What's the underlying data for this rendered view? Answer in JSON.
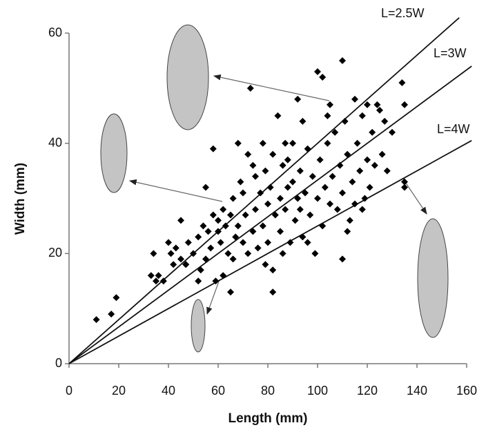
{
  "chart_data": {
    "type": "scatter",
    "x_label": "Length (mm)",
    "y_label": "Width (mm)",
    "xlim": [
      0,
      160
    ],
    "ylim": [
      0,
      60
    ],
    "xticks": [
      0,
      20,
      40,
      60,
      80,
      100,
      120,
      140,
      160
    ],
    "yticks": [
      0,
      20,
      40,
      60
    ],
    "grid": false,
    "color": "#000000",
    "series": [
      {
        "color": "#000000",
        "x": [
          11,
          17,
          19,
          33,
          34,
          35,
          36,
          38,
          40,
          41,
          42,
          43,
          45,
          45,
          47,
          48,
          50,
          52,
          53,
          54,
          55,
          55,
          57,
          58,
          58,
          59,
          60,
          60,
          61,
          62,
          62,
          63,
          64,
          65,
          65,
          66,
          67,
          68,
          68,
          70,
          70,
          71,
          72,
          72,
          73,
          74,
          75,
          75,
          76,
          77,
          78,
          78,
          79,
          80,
          80,
          81,
          82,
          82,
          82,
          83,
          84,
          85,
          85,
          86,
          87,
          87,
          88,
          89,
          90,
          90,
          91,
          92,
          92,
          93,
          94,
          94,
          95,
          96,
          97,
          98,
          99,
          100,
          100,
          101,
          102,
          102,
          103,
          104,
          105,
          105,
          106,
          107,
          108,
          109,
          110,
          110,
          110,
          111,
          112,
          113,
          114,
          115,
          115,
          116,
          117,
          118,
          119,
          120,
          120,
          121,
          122,
          123,
          124,
          125,
          126,
          128,
          130,
          134,
          135,
          135,
          135,
          47,
          56,
          66,
          74,
          79,
          88,
          96,
          104,
          112,
          118,
          127,
          52,
          69,
          86,
          93
        ],
        "values": [
          8,
          9,
          12,
          16,
          20,
          15,
          16,
          15,
          22,
          20,
          18,
          21,
          19,
          26,
          18,
          22,
          20,
          23,
          17,
          25,
          32,
          19,
          21,
          27,
          39,
          15,
          26,
          24,
          22,
          28,
          16,
          25,
          20,
          13,
          27,
          30,
          23,
          40,
          25,
          22,
          31,
          27,
          38,
          20,
          50,
          24,
          34,
          28,
          21,
          31,
          25,
          40,
          35,
          29,
          22,
          32,
          17,
          13,
          38,
          27,
          45,
          30,
          24,
          36,
          28,
          40,
          32,
          22,
          33,
          40,
          26,
          48,
          30,
          35,
          23,
          44,
          31,
          39,
          27,
          34,
          20,
          53,
          30,
          37,
          52,
          25,
          32,
          40,
          47,
          29,
          34,
          42,
          28,
          36,
          55,
          19,
          31,
          44,
          38,
          26,
          33,
          48,
          29,
          40,
          35,
          45,
          30,
          47,
          37,
          32,
          42,
          36,
          47,
          46,
          38,
          35,
          42,
          51,
          47,
          33,
          32,
          18,
          24,
          19,
          36,
          18,
          37,
          22,
          45,
          24,
          28,
          44,
          15,
          33,
          20,
          28
        ]
      }
    ],
    "lines": [
      {
        "name": "L=2.5W",
        "x": [
          0,
          157
        ],
        "values": [
          0,
          62.8
        ]
      },
      {
        "name": "L=3W",
        "x": [
          0,
          162
        ],
        "values": [
          0,
          54
        ]
      },
      {
        "name": "L=4W",
        "x": [
          0,
          162
        ],
        "values": [
          0,
          40.5
        ]
      }
    ]
  }
}
